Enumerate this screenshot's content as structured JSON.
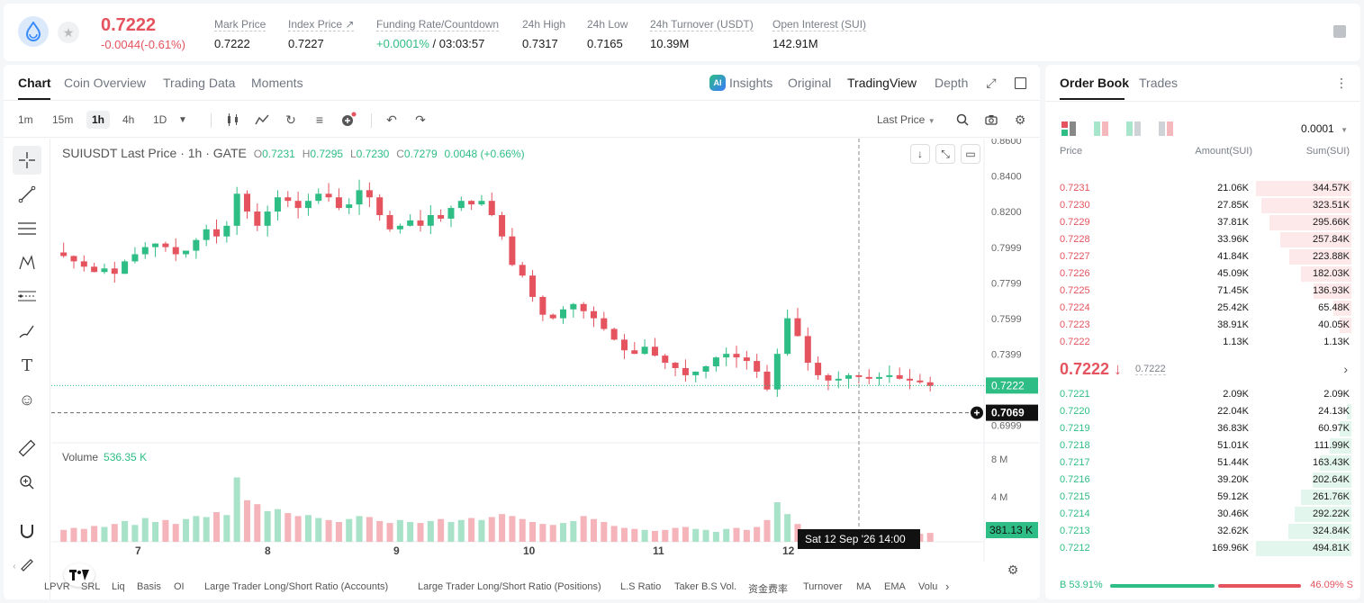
{
  "header": {
    "last_price": "0.7222",
    "change": "-0.0044(-0.61%)",
    "stats": [
      {
        "label": "Mark Price",
        "value": "0.7222"
      },
      {
        "label": "Index Price ↗",
        "value": "0.7227"
      },
      {
        "label": "Funding Rate/Countdown",
        "value_rate": "+0.0001%",
        "value_countdown": "/ 03:03:57"
      },
      {
        "label": "24h High",
        "value": "0.7317"
      },
      {
        "label": "24h Low",
        "value": "0.7165"
      },
      {
        "label": "24h Turnover (USDT)",
        "value": "10.39M"
      },
      {
        "label": "Open Interest (SUI)",
        "value": "142.91M"
      }
    ]
  },
  "chart_tabs": [
    "Chart",
    "Coin Overview",
    "Trading Data",
    "Moments"
  ],
  "view_options": {
    "insights": "Insights",
    "original": "Original",
    "tradingview": "TradingView",
    "depth": "Depth",
    "ai_badge": "AI"
  },
  "intervals": [
    "1m",
    "15m",
    "1h",
    "4h",
    "1D"
  ],
  "price_type": "Last Price",
  "legend": {
    "symbol": "SUIUSDT Last Price · 1h · GATE",
    "o": "0.7231",
    "h": "0.7295",
    "l": "0.7230",
    "c": "0.7279",
    "chg": "0.0048 (+0.66%)",
    "o_label": "O",
    "h_label": "H",
    "l_label": "L",
    "c_label": "C"
  },
  "volume": {
    "label": "Volume",
    "value": "536.35 K",
    "last": "381.13 K",
    "ticks": [
      "8 M",
      "4 M"
    ]
  },
  "crosshair": {
    "price": "0.7069",
    "time": "Sat 12 Sep '26   14:00"
  },
  "chart_data": {
    "type": "candlestick",
    "price_axis_ticks": [
      "0.8600",
      "0.8400",
      "0.8200",
      "0.7999",
      "0.7799",
      "0.7599",
      "0.7399",
      "0.7222",
      "0.6999"
    ],
    "x_ticks": [
      "7",
      "8",
      "9",
      "10",
      "11",
      "12"
    ],
    "current_price": 0.7222,
    "ylim": [
      0.69,
      0.861
    ],
    "close_path": [
      0.795,
      0.792,
      0.789,
      0.786,
      0.788,
      0.785,
      0.792,
      0.796,
      0.8,
      0.802,
      0.8,
      0.796,
      0.798,
      0.804,
      0.81,
      0.806,
      0.812,
      0.83,
      0.82,
      0.812,
      0.82,
      0.828,
      0.826,
      0.822,
      0.826,
      0.83,
      0.828,
      0.822,
      0.824,
      0.832,
      0.828,
      0.818,
      0.81,
      0.812,
      0.815,
      0.812,
      0.818,
      0.816,
      0.822,
      0.826,
      0.824,
      0.826,
      0.818,
      0.806,
      0.79,
      0.784,
      0.772,
      0.762,
      0.76,
      0.765,
      0.768,
      0.764,
      0.76,
      0.754,
      0.748,
      0.742,
      0.74,
      0.744,
      0.739,
      0.735,
      0.732,
      0.728,
      0.73,
      0.733,
      0.738,
      0.74,
      0.738,
      0.736,
      0.73,
      0.72,
      0.74,
      0.76,
      0.75,
      0.735,
      0.728,
      0.725,
      0.726,
      0.728,
      0.727,
      0.726,
      0.727,
      0.728,
      0.726,
      0.725,
      0.724,
      0.722
    ],
    "volume_path": [
      1.2,
      1.4,
      1.3,
      1.6,
      1.5,
      1.8,
      2.1,
      1.7,
      2.4,
      2.0,
      2.2,
      1.8,
      2.3,
      2.6,
      2.5,
      3.0,
      2.7,
      6.5,
      4.2,
      3.8,
      3.1,
      3.3,
      2.9,
      2.6,
      2.7,
      2.4,
      2.2,
      2.0,
      2.3,
      2.6,
      2.5,
      2.1,
      1.9,
      2.2,
      2.0,
      1.9,
      2.1,
      2.3,
      2.0,
      2.2,
      2.4,
      2.2,
      2.5,
      2.8,
      2.6,
      2.3,
      2.0,
      1.8,
      1.7,
      1.9,
      2.1,
      2.6,
      2.3,
      2.0,
      1.6,
      1.4,
      1.3,
      1.2,
      1.1,
      1.2,
      1.4,
      1.5,
      1.3,
      1.2,
      1.0,
      1.3,
      1.4,
      1.2,
      1.5,
      2.2,
      4.0,
      2.8,
      1.8,
      1.2,
      0.9,
      0.8,
      0.7,
      0.8,
      0.9,
      0.7,
      0.8,
      0.9,
      0.8,
      0.7,
      0.8,
      0.9
    ]
  },
  "indicators": [
    "LPVR",
    "SRL",
    "Liq",
    "Basis",
    "OI",
    "Large Trader Long/Short Ratio (Accounts)",
    "Large Trader Long/Short Ratio (Positions)",
    "L.S Ratio",
    "Taker B.S Vol.",
    "资金费率",
    "Turnover",
    "MA",
    "EMA",
    "Volu"
  ],
  "orderbook": {
    "tabs": [
      "Order Book",
      "Trades"
    ],
    "precision": "0.0001",
    "headers": {
      "price": "Price",
      "amount": "Amount(SUI)",
      "sum": "Sum(SUI)"
    },
    "asks": [
      {
        "p": "0.7231",
        "a": "21.06K",
        "s": "344.57K",
        "depth": 1.0
      },
      {
        "p": "0.7230",
        "a": "27.85K",
        "s": "323.51K",
        "depth": 0.94
      },
      {
        "p": "0.7229",
        "a": "37.81K",
        "s": "295.66K",
        "depth": 0.86
      },
      {
        "p": "0.7228",
        "a": "33.96K",
        "s": "257.84K",
        "depth": 0.75
      },
      {
        "p": "0.7227",
        "a": "41.84K",
        "s": "223.88K",
        "depth": 0.65
      },
      {
        "p": "0.7226",
        "a": "45.09K",
        "s": "182.03K",
        "depth": 0.53
      },
      {
        "p": "0.7225",
        "a": "71.45K",
        "s": "136.93K",
        "depth": 0.4
      },
      {
        "p": "0.7224",
        "a": "25.42K",
        "s": "65.48K",
        "depth": 0.19
      },
      {
        "p": "0.7223",
        "a": "38.91K",
        "s": "40.05K",
        "depth": 0.12
      },
      {
        "p": "0.7222",
        "a": "1.13K",
        "s": "1.13K",
        "depth": 0.0
      }
    ],
    "mid_price": "0.7222 ↓",
    "mark_price": "0.7222",
    "bids": [
      {
        "p": "0.7221",
        "a": "2.09K",
        "s": "2.09K",
        "depth": 0.0
      },
      {
        "p": "0.7220",
        "a": "22.04K",
        "s": "24.13K",
        "depth": 0.05
      },
      {
        "p": "0.7219",
        "a": "36.83K",
        "s": "60.97K",
        "depth": 0.12
      },
      {
        "p": "0.7218",
        "a": "51.01K",
        "s": "111.99K",
        "depth": 0.23
      },
      {
        "p": "0.7217",
        "a": "51.44K",
        "s": "163.43K",
        "depth": 0.33
      },
      {
        "p": "0.7216",
        "a": "39.20K",
        "s": "202.64K",
        "depth": 0.41
      },
      {
        "p": "0.7215",
        "a": "59.12K",
        "s": "261.76K",
        "depth": 0.53
      },
      {
        "p": "0.7214",
        "a": "30.46K",
        "s": "292.22K",
        "depth": 0.59
      },
      {
        "p": "0.7213",
        "a": "32.62K",
        "s": "324.84K",
        "depth": 0.66
      },
      {
        "p": "0.7212",
        "a": "169.96K",
        "s": "494.81K",
        "depth": 1.0
      }
    ],
    "buy_ratio": "B 53.91%",
    "sell_ratio": "46.09% S"
  },
  "colors": {
    "up": "#2ebd85",
    "down": "#e5535e"
  }
}
